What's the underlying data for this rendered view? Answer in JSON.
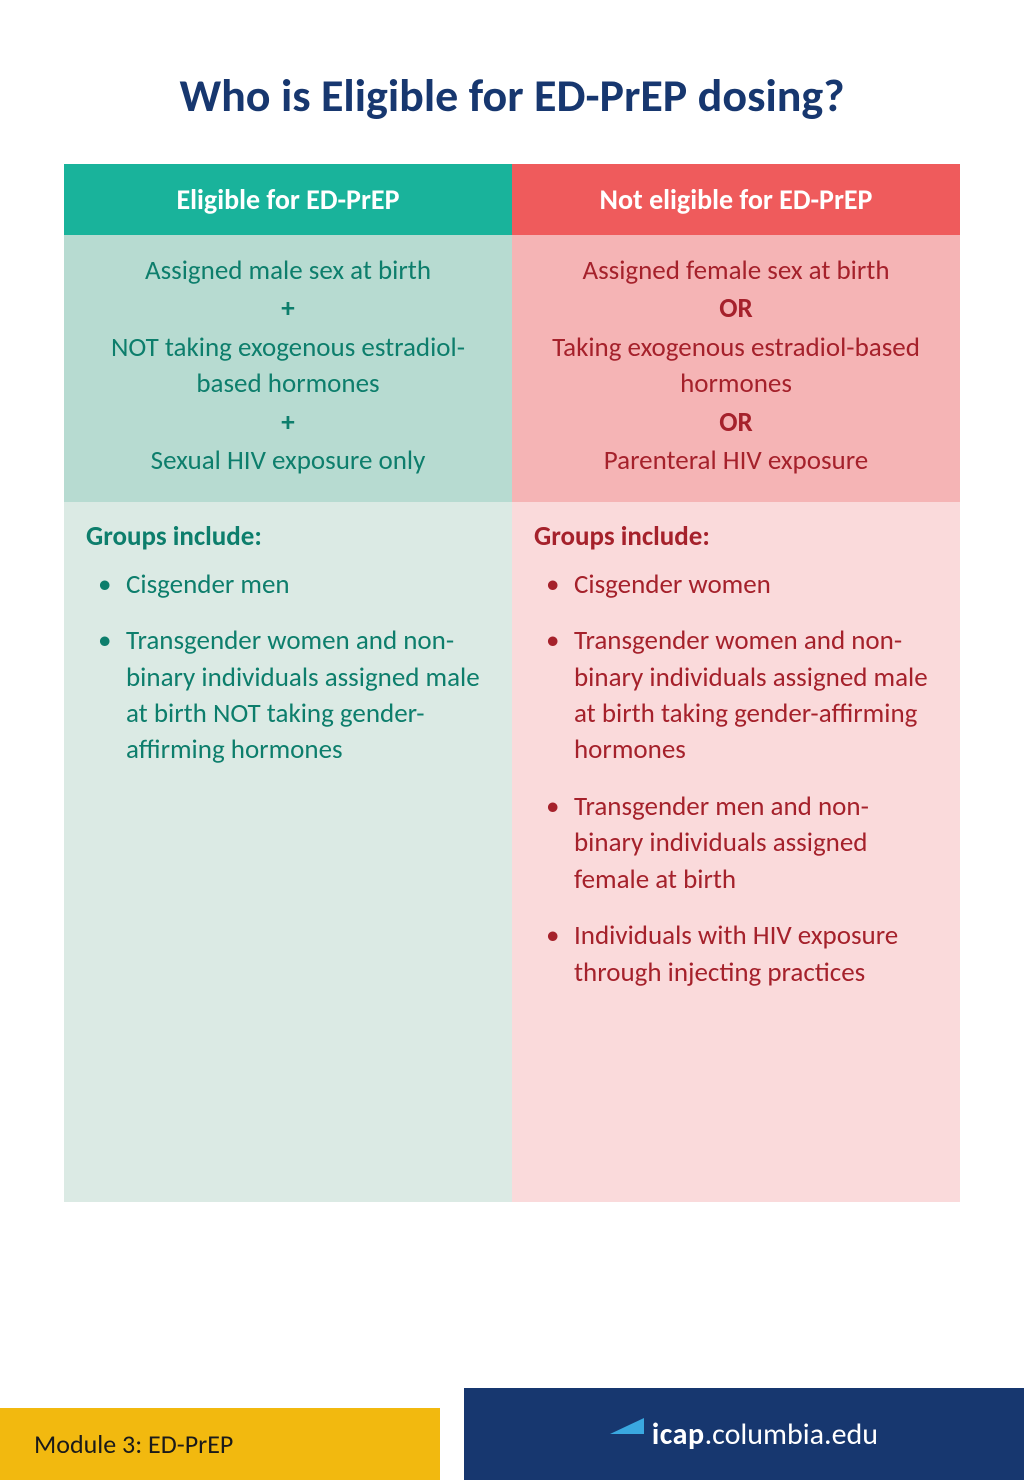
{
  "title": {
    "text": "Who is Eligible for ED-PrEP dosing?",
    "color": "#17376f"
  },
  "columns": {
    "eligible": {
      "header": "Eligible for ED-PrEP",
      "header_bg": "#19b39b",
      "criteria_bg": "#b7dbd1",
      "criteria_text_color": "#0d7e6c",
      "criteria_lines": [
        "Assigned male sex at birth",
        "NOT taking exogenous estradiol-based hormones",
        "Sexual HIV exposure only"
      ],
      "criteria_separator": "+",
      "groups_bg": "#dbeae4",
      "groups_text_color": "#0d7e6c",
      "groups_title": "Groups include:",
      "groups": [
        "Cisgender men",
        "Transgender women and non-binary individuals assigned male at birth NOT taking gender-affirming hormones"
      ]
    },
    "not_eligible": {
      "header": "Not eligible for ED-PrEP",
      "header_bg": "#ef5b5c",
      "criteria_bg": "#f5b4b5",
      "criteria_text_color": "#a5212b",
      "criteria_lines": [
        "Assigned female sex at birth",
        "Taking exogenous estradiol-based hormones",
        "Parenteral HIV exposure"
      ],
      "criteria_separator": "OR",
      "groups_bg": "#fadadb",
      "groups_text_color": "#a5212b",
      "groups_title": "Groups include:",
      "groups": [
        "Cisgender women",
        "Transgender women and non-binary individuals assigned male at birth taking gender-affirming hormones",
        "Transgender men and non-binary individuals assigned female at birth",
        "Individuals with HIV exposure through injecting practices"
      ]
    }
  },
  "footer": {
    "module_text": "Module 3: ED-PrEP",
    "yellow_bg": "#f2b90f",
    "yellow_width": 440,
    "blue_bg": "#17376f",
    "blue_width": 560,
    "logo_bold": "icap",
    "logo_light": ".columbia.edu",
    "logo_accent": "#3aa8e0"
  }
}
